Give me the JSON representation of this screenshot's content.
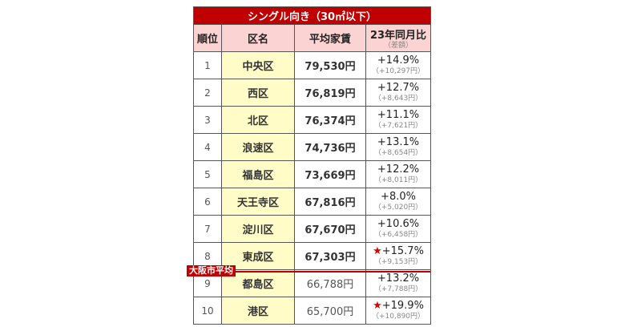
{
  "title": "シングル向き（30㎡以下）",
  "headers": {
    "rank": "順位",
    "name": "区名",
    "rent": "平均家賃",
    "change": "23年同月比",
    "change_sub": "（差額）"
  },
  "average_label": "大阪市平均",
  "rows": [
    {
      "rank": "1",
      "name": "中央区",
      "rent": "79,530円",
      "pct": "+14.9%",
      "diff": "（+10,297円）",
      "star": false
    },
    {
      "rank": "2",
      "name": "西区",
      "rent": "76,819円",
      "pct": "+12.7%",
      "diff": "（+8,643円）",
      "star": false
    },
    {
      "rank": "3",
      "name": "北区",
      "rent": "76,374円",
      "pct": "+11.1%",
      "diff": "（+7,621円）",
      "star": false
    },
    {
      "rank": "4",
      "name": "浪速区",
      "rent": "74,736円",
      "pct": "+13.1%",
      "diff": "（+8,654円）",
      "star": false
    },
    {
      "rank": "5",
      "name": "福島区",
      "rent": "73,669円",
      "pct": "+12.2%",
      "diff": "（+8,011円）",
      "star": false
    },
    {
      "rank": "6",
      "name": "天王寺区",
      "rent": "67,816円",
      "pct": "+8.0%",
      "diff": "（+5,020円）",
      "star": false
    },
    {
      "rank": "7",
      "name": "淀川区",
      "rent": "67,670円",
      "pct": "+10.6%",
      "diff": "（+6,458円）",
      "star": false
    },
    {
      "rank": "8",
      "name": "東成区",
      "rent": "67,303円",
      "pct": "+15.7%",
      "diff": "（+9,153円）",
      "star": true
    },
    {
      "rank": "9",
      "name": "都島区",
      "rent": "66,788円",
      "pct": "+13.2%",
      "diff": "（+7,788円）",
      "star": false
    },
    {
      "rank": "10",
      "name": "港区",
      "rent": "65,700円",
      "pct": "+19.9%",
      "diff": "（+10,890円）",
      "star": true
    }
  ],
  "star_glyph": "★"
}
